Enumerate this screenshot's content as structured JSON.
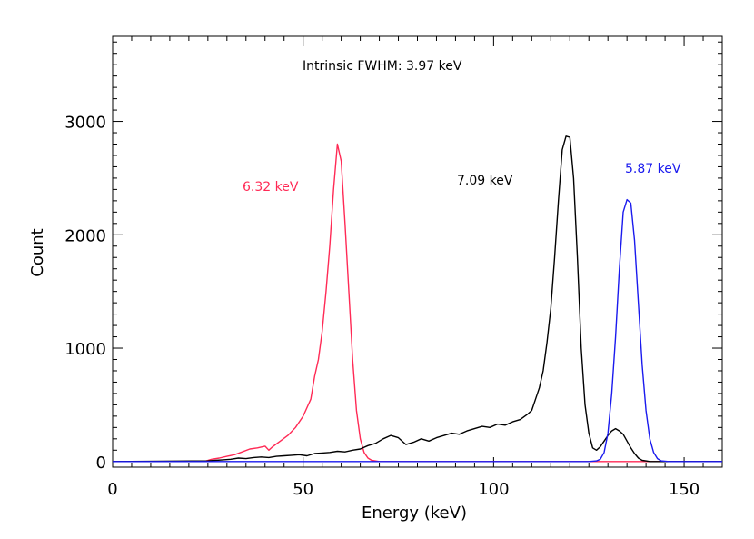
{
  "chart_data": {
    "type": "line",
    "title": "",
    "xlabel": "Energy (keV)",
    "ylabel": "Count",
    "xlim": [
      0,
      160
    ],
    "ylim": [
      -50,
      3750
    ],
    "x_ticks": [
      0,
      50,
      100,
      150
    ],
    "y_ticks": [
      0,
      1000,
      2000,
      3000
    ],
    "annotations": {
      "fwhm_text": "Intrinsic FWHM: 3.97 keV",
      "red_label": "6.32 keV",
      "black_label": "7.09 keV",
      "blue_label": "5.87 keV"
    },
    "colors": {
      "axis": "#000000",
      "red": "#ff2a55",
      "black": "#000000",
      "blue": "#1a1aee"
    },
    "series": [
      {
        "name": "red",
        "color": "#ff2a55",
        "x": [
          0,
          24,
          26,
          28,
          30,
          32,
          34,
          36,
          38,
          40,
          41,
          42,
          44,
          46,
          48,
          50,
          52,
          53,
          54,
          55,
          56,
          57,
          58,
          59,
          60,
          61,
          62,
          63,
          64,
          65,
          66,
          67,
          68,
          70,
          75,
          100,
          160
        ],
        "y": [
          0,
          0,
          20,
          30,
          45,
          60,
          85,
          110,
          120,
          135,
          100,
          130,
          180,
          230,
          300,
          400,
          550,
          750,
          900,
          1150,
          1500,
          1900,
          2400,
          2800,
          2650,
          2100,
          1500,
          900,
          450,
          200,
          80,
          30,
          10,
          0,
          0,
          0,
          0
        ]
      },
      {
        "name": "black",
        "color": "#000000",
        "x": [
          0,
          25,
          27,
          29,
          31,
          33,
          35,
          37,
          39,
          41,
          43,
          45,
          47,
          49,
          51,
          53,
          55,
          57,
          59,
          61,
          63,
          65,
          67,
          69,
          71,
          73,
          75,
          77,
          79,
          81,
          83,
          85,
          87,
          89,
          91,
          93,
          95,
          97,
          99,
          101,
          103,
          105,
          107,
          109,
          110,
          111,
          112,
          113,
          114,
          115,
          116,
          117,
          118,
          119,
          120,
          121,
          122,
          123,
          124,
          125,
          126,
          127,
          128,
          129,
          130,
          131,
          132,
          133,
          134,
          135,
          136,
          137,
          138,
          139,
          140,
          141,
          142,
          143,
          144,
          145,
          160
        ],
        "y": [
          0,
          5,
          10,
          15,
          20,
          30,
          25,
          35,
          40,
          35,
          45,
          50,
          55,
          60,
          50,
          70,
          75,
          80,
          90,
          85,
          100,
          110,
          140,
          160,
          200,
          230,
          210,
          150,
          170,
          200,
          180,
          210,
          230,
          250,
          240,
          270,
          290,
          310,
          300,
          330,
          320,
          350,
          370,
          420,
          450,
          550,
          650,
          800,
          1050,
          1350,
          1800,
          2300,
          2750,
          2870,
          2860,
          2500,
          1800,
          1000,
          500,
          250,
          120,
          100,
          130,
          180,
          230,
          270,
          290,
          270,
          240,
          180,
          120,
          70,
          30,
          10,
          5,
          0,
          0,
          0,
          0,
          0,
          0
        ]
      },
      {
        "name": "blue",
        "color": "#1a1aee",
        "x": [
          0,
          125,
          127,
          128,
          129,
          130,
          131,
          132,
          133,
          134,
          135,
          136,
          137,
          138,
          139,
          140,
          141,
          142,
          143,
          144,
          146,
          160
        ],
        "y": [
          0,
          0,
          5,
          20,
          80,
          250,
          600,
          1100,
          1700,
          2200,
          2310,
          2280,
          1950,
          1400,
          850,
          450,
          200,
          80,
          25,
          5,
          0,
          0
        ]
      }
    ]
  }
}
